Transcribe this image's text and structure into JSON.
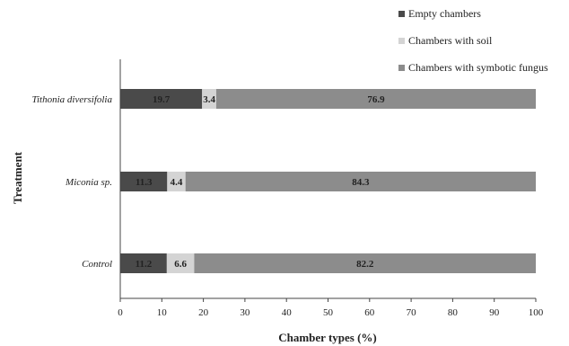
{
  "chart_data": {
    "type": "bar",
    "orientation": "horizontal",
    "stacked": true,
    "categories": [
      "Tithonia diversifolia",
      "Miconia sp.",
      "Control"
    ],
    "series": [
      {
        "name": "Empty chambers",
        "values": [
          19.7,
          11.3,
          11.2
        ],
        "labels": [
          "19.7",
          "11.3",
          "11.2"
        ],
        "color": "#4a4a4a"
      },
      {
        "name": "Chambers with soil",
        "values": [
          3.4,
          4.4,
          6.6
        ],
        "labels": [
          "3.4",
          "4.4",
          "6.6"
        ],
        "color": "#d4d4d4"
      },
      {
        "name": "Chambers with symbotic fungus",
        "values": [
          76.9,
          84.3,
          82.2
        ],
        "labels": [
          "76.9",
          "84.3",
          "82.2"
        ],
        "color": "#8c8c8c"
      }
    ],
    "title": "",
    "xlabel": "Chamber types (%)",
    "ylabel": "Treatment",
    "xlim": [
      0,
      100
    ],
    "xticks": [
      "0",
      "10",
      "20",
      "30",
      "40",
      "50",
      "60",
      "70",
      "80",
      "90",
      "100"
    ],
    "grid": false,
    "legend_position": "top-right"
  }
}
